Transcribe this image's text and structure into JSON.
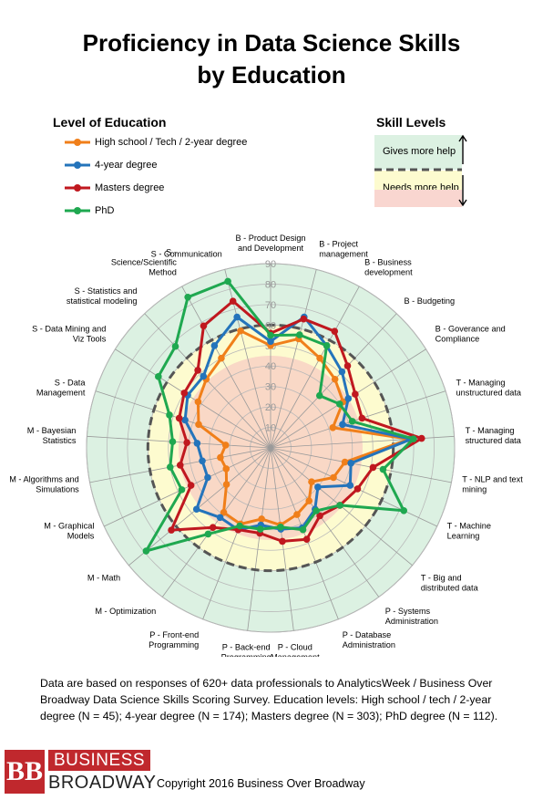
{
  "chart_data": {
    "type": "radar",
    "title": "Proficiency in Data Science Skills by Education",
    "title_lines": [
      "Proficiency in Data Science Skills",
      "by Education"
    ],
    "legend_title": "Level of Education",
    "skill_levels_title": "Skill Levels",
    "skill_levels": {
      "top": "Gives more help",
      "bottom": "Needs more help"
    },
    "radial_ticks": [
      "0",
      "10",
      "20",
      "30",
      "40",
      "50",
      "60",
      "70",
      "80",
      "90"
    ],
    "rmax": 90,
    "threshold": 60,
    "categories": [
      "B - Product Design and Development",
      "B - Project management",
      "B - Business development",
      "B - Budgeting",
      "B - Goverance and Compliance",
      "T - Managing unstructured data",
      "T - Managing structured data",
      "T - NLP and text mining",
      "T - Machine Learning",
      "T - Big and distributed data",
      "P - Systems Administration",
      "P - Database Administration",
      "P - Cloud Management",
      "P - Back-end Programming",
      "P - Front-end Programming",
      "M - Optimization",
      "M - Math",
      "M - Graphical Models",
      "M - Algorithms and Simulations",
      "M - Bayesian Statistics",
      "S - Data Management",
      "S - Data Mining and Viz Tools",
      "S - Statistics and statistical modeling",
      "S - Science/Scientific Method",
      "S - Communication"
    ],
    "category_label_lines": [
      [
        "B - Product Design",
        "and Development"
      ],
      [
        "B - Project",
        "management"
      ],
      [
        "B - Business",
        "development"
      ],
      [
        "B - Budgeting"
      ],
      [
        "B - Goverance and",
        "Compliance"
      ],
      [
        "T - Managing",
        "unstructured data"
      ],
      [
        "T - Managing",
        "structured data"
      ],
      [
        "T - NLP and text",
        "mining"
      ],
      [
        "T - Machine",
        "Learning"
      ],
      [
        "T - Big and",
        "distributed data"
      ],
      [
        "P - Systems",
        "Administration"
      ],
      [
        "P - Database",
        "Administration"
      ],
      [
        "P - Cloud",
        "Management"
      ],
      [
        "P - Back-end",
        "Programming"
      ],
      [
        "P - Front-end",
        "Programming"
      ],
      [
        "M - Optimization"
      ],
      [
        "M - Math"
      ],
      [
        "M - Graphical",
        "Models"
      ],
      [
        "M - Algorithms and",
        "Simulations"
      ],
      [
        "M - Bayesian",
        "Statistics"
      ],
      [
        "S - Data",
        "Management"
      ],
      [
        "S - Data Mining and",
        "Viz Tools"
      ],
      [
        "S - Statistics and",
        "statistical modeling"
      ],
      [
        "S -",
        "Science/Scientific",
        "Method"
      ],
      [
        "S - Communication"
      ]
    ],
    "series": [
      {
        "name": "High school / Tech / 2-year degree",
        "color": "#f07f1a",
        "values": [
          50,
          55,
          50,
          46,
          42,
          32,
          68,
          37,
          34,
          26,
          32,
          35,
          38,
          35,
          40,
          39,
          28,
          24,
          25,
          22,
          37,
          42,
          46,
          50,
          59
        ]
      },
      {
        "name": "4-year degree",
        "color": "#2474bb",
        "values": [
          52,
          66,
          57,
          51,
          45,
          37,
          69,
          40,
          43,
          30,
          37,
          42,
          40,
          38,
          43,
          42,
          47,
          34,
          34,
          36,
          44,
          48,
          48,
          57,
          66
        ]
      },
      {
        "name": "Masters degree",
        "color": "#c0181f",
        "values": [
          56,
          65,
          65,
          55,
          49,
          47,
          74,
          51,
          47,
          44,
          41,
          48,
          46,
          42,
          43,
          48,
          63,
          43,
          45,
          41,
          47,
          50,
          52,
          68,
          74
        ]
      },
      {
        "name": "PhD",
        "color": "#1fa850",
        "values": [
          55,
          57,
          57,
          35,
          40,
          42,
          70,
          56,
          72,
          44,
          38,
          43,
          39,
          40,
          41,
          52,
          79,
          48,
          50,
          48,
          52,
          65,
          68,
          84,
          84
        ]
      }
    ]
  },
  "note": "Data are based on responses of 620+ data professionals to AnalyticsWeek / Business Over Broadway Data Science Skills Scoring Survey.  Education levels: High school / tech / 2-year degree (N = 45); 4-year degree (N = 174); Masters degree (N = 303); PhD degree (N = 112).",
  "logo": {
    "mark": "BB",
    "line1": "BUSINESS",
    "line2": "BROADWAY"
  },
  "copyright": "Copyright 2016 Business Over Broadway"
}
